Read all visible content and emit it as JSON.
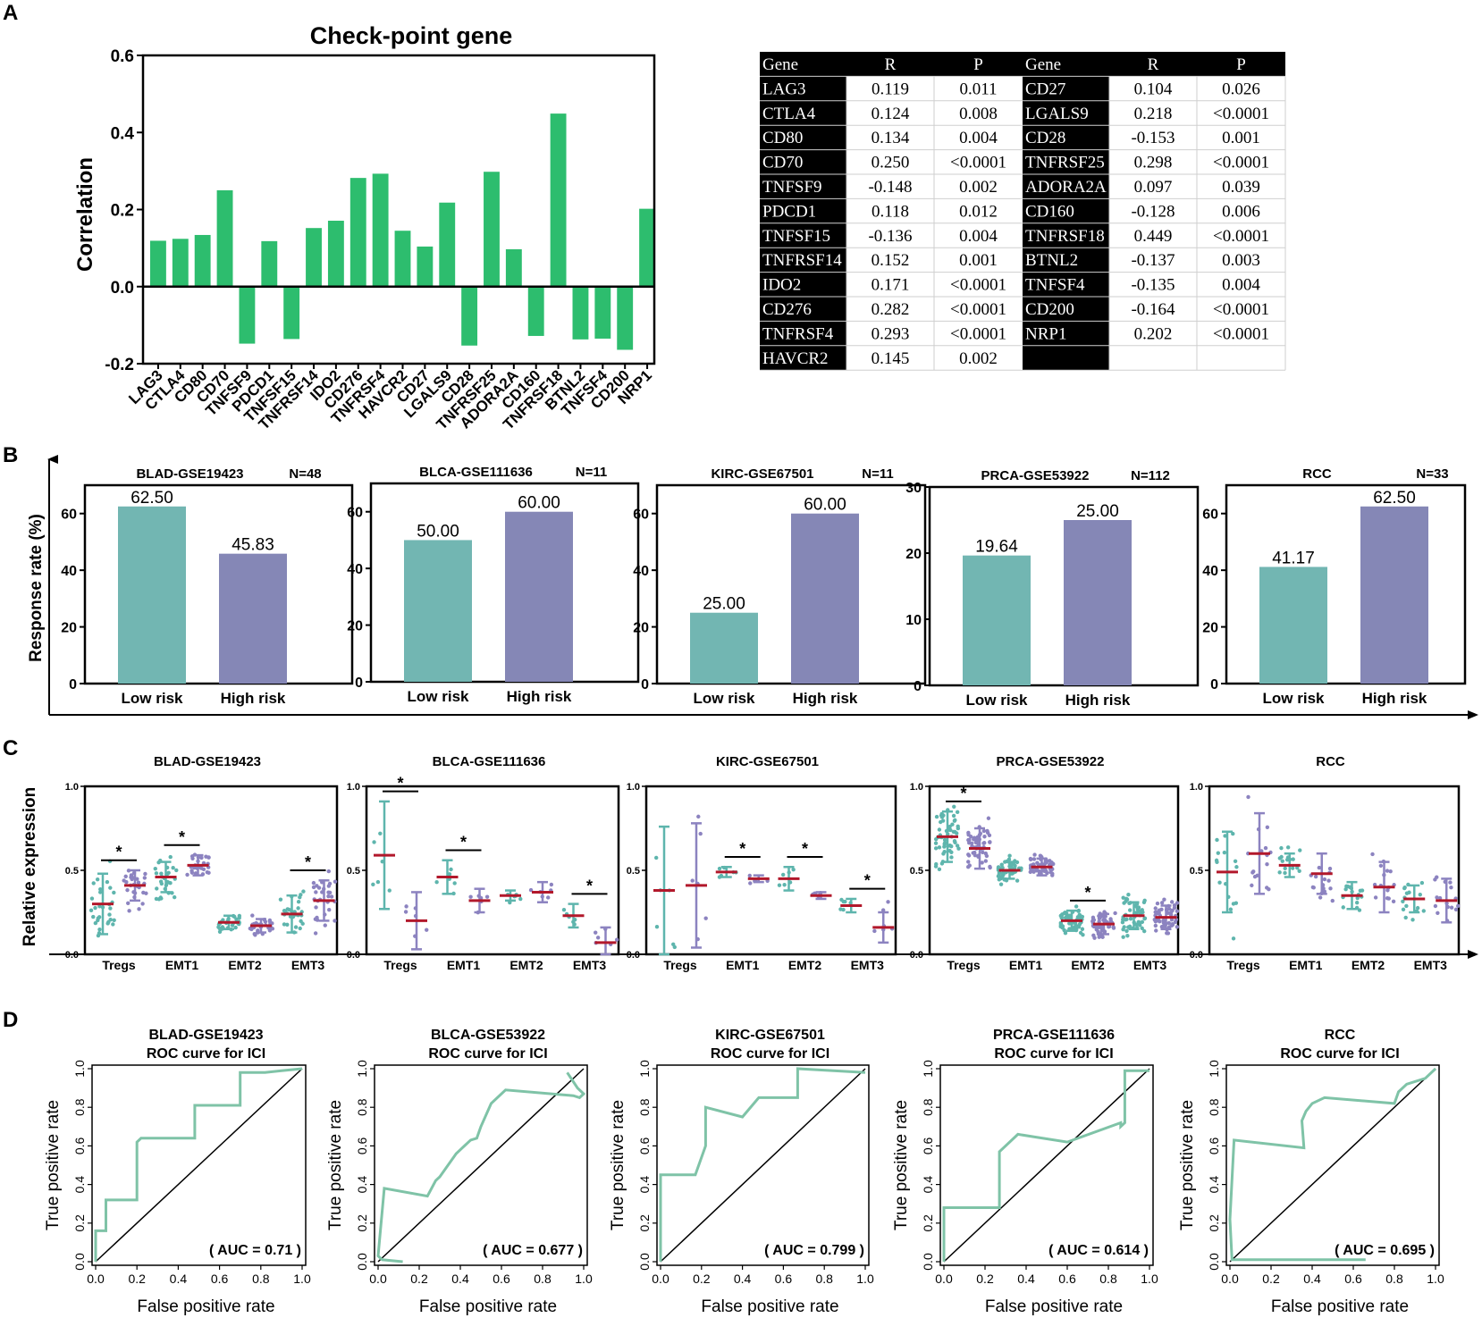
{
  "colors": {
    "green": "#2dbd6e",
    "low": "#72b6b2",
    "high": "#8587b6",
    "teal_dot": "#5eb5ad",
    "purple_dot": "#8c83c0",
    "median": "#b2182b",
    "roc": "#7fc3a7"
  },
  "panel_letters": [
    "A",
    "B",
    "C",
    "D"
  ],
  "chart_data": [
    {
      "id": "A-bar",
      "type": "bar",
      "title": "Check-point gene",
      "xlabel": "",
      "ylabel": "Correlation",
      "ylim": [
        -0.2,
        0.6
      ],
      "yticks": [
        "-0.2",
        "0.0",
        "0.2",
        "0.4",
        "0.6"
      ],
      "categories": [
        "LAG3",
        "CTLA4",
        "CD80",
        "CD70",
        "TNFSF9",
        "PDCD1",
        "TNFSF15",
        "TNFRSF14",
        "IDO2",
        "CD276",
        "TNFRSF4",
        "HAVCR2",
        "CD27",
        "LGALS9",
        "CD28",
        "TNFRSF25",
        "ADORA2A",
        "CD160",
        "TNFRSF18",
        "BTNL2",
        "TNFSF4",
        "CD200",
        "NRP1"
      ],
      "values": [
        0.119,
        0.124,
        0.134,
        0.25,
        -0.148,
        0.118,
        -0.136,
        0.152,
        0.171,
        0.282,
        0.293,
        0.145,
        0.104,
        0.218,
        -0.153,
        0.298,
        0.097,
        -0.128,
        0.449,
        -0.137,
        -0.135,
        -0.164,
        0.202
      ]
    },
    {
      "id": "A-table",
      "type": "table",
      "columns": [
        "Gene",
        "R",
        "P",
        "Gene",
        "R",
        "P"
      ],
      "rows": [
        [
          "LAG3",
          "0.119",
          "0.011",
          "CD27",
          "0.104",
          "0.026"
        ],
        [
          "CTLA4",
          "0.124",
          "0.008",
          "LGALS9",
          "0.218",
          "<0.0001"
        ],
        [
          "CD80",
          "0.134",
          "0.004",
          "CD28",
          "-0.153",
          "0.001"
        ],
        [
          "CD70",
          "0.250",
          "<0.0001",
          "TNFRSF25",
          "0.298",
          "<0.0001"
        ],
        [
          "TNFSF9",
          "-0.148",
          "0.002",
          "ADORA2A",
          "0.097",
          "0.039"
        ],
        [
          "PDCD1",
          "0.118",
          "0.012",
          "CD160",
          "-0.128",
          "0.006"
        ],
        [
          "TNFSF15",
          "-0.136",
          "0.004",
          "TNFRSF18",
          "0.449",
          "<0.0001"
        ],
        [
          "TNFRSF14",
          "0.152",
          "0.001",
          "BTNL2",
          "-0.137",
          "0.003"
        ],
        [
          "IDO2",
          "0.171",
          "<0.0001",
          "TNFSF4",
          "-0.135",
          "0.004"
        ],
        [
          "CD276",
          "0.282",
          "<0.0001",
          "CD200",
          "-0.164",
          "<0.0001"
        ],
        [
          "TNFRSF4",
          "0.293",
          "<0.0001",
          "NRP1",
          "0.202",
          "<0.0001"
        ],
        [
          "HAVCR2",
          "0.145",
          "0.002",
          "",
          "",
          ""
        ]
      ]
    },
    {
      "id": "B-bars",
      "type": "bar",
      "ylabel": "Response rate (%)",
      "categories": [
        "Low risk",
        "High risk"
      ],
      "subplots": [
        {
          "title": "BLAD-GSE19423",
          "n": "N=48",
          "ymax": 70,
          "yticks": [
            "0",
            "20",
            "40",
            "60"
          ],
          "values": [
            62.5,
            45.83
          ],
          "labels": [
            "62.50",
            "45.83"
          ]
        },
        {
          "title": "BLCA-GSE111636",
          "n": "N=11",
          "ymax": 70,
          "yticks": [
            "0",
            "20",
            "40",
            "60"
          ],
          "values": [
            50.0,
            60.0
          ],
          "labels": [
            "50.00",
            "60.00"
          ]
        },
        {
          "title": "KIRC-GSE67501",
          "n": "N=11",
          "ymax": 70,
          "yticks": [
            "0",
            "20",
            "40",
            "60"
          ],
          "values": [
            25.0,
            60.0
          ],
          "labels": [
            "25.00",
            "60.00"
          ]
        },
        {
          "title": "PRCA-GSE53922",
          "n": "N=112",
          "ymax": 30,
          "yticks": [
            "0",
            "10",
            "20",
            "30"
          ],
          "values": [
            19.64,
            25.0
          ],
          "labels": [
            "19.64",
            "25.00"
          ]
        },
        {
          "title": "RCC",
          "n": "N=33",
          "ymax": 70,
          "yticks": [
            "0",
            "20",
            "40",
            "60"
          ],
          "values": [
            41.17,
            62.5
          ],
          "labels": [
            "41.17",
            "62.50"
          ]
        }
      ]
    },
    {
      "id": "C-scatter",
      "type": "scatter",
      "ylabel": "Relative expression",
      "categories": [
        "Tregs",
        "EMT1",
        "EMT2",
        "EMT3"
      ],
      "ylim": [
        0,
        1
      ],
      "yticks": [
        "0.0",
        "0.5",
        "1.0"
      ],
      "subplots": [
        {
          "title": "BLAD-GSE19423",
          "n": 30,
          "groups": [
            [
              0.3,
              0.18
            ],
            [
              0.41,
              0.09
            ],
            [
              0.46,
              0.09
            ],
            [
              0.53,
              0.06
            ],
            [
              0.19,
              0.04
            ],
            [
              0.17,
              0.04
            ],
            [
              0.24,
              0.11
            ],
            [
              0.32,
              0.12
            ]
          ],
          "sig": [
            0,
            1,
            3
          ],
          "sig_label": "*"
        },
        {
          "title": "BLCA-GSE111636",
          "n": 6,
          "groups": [
            [
              0.59,
              0.32
            ],
            [
              0.2,
              0.17
            ],
            [
              0.46,
              0.1
            ],
            [
              0.32,
              0.07
            ],
            [
              0.35,
              0.03
            ],
            [
              0.37,
              0.06
            ],
            [
              0.23,
              0.07
            ],
            [
              0.07,
              0.09
            ]
          ],
          "sig": [
            0,
            1,
            3
          ],
          "sig_label": "*"
        },
        {
          "title": "KIRC-GSE67501",
          "n": 6,
          "groups": [
            [
              0.38,
              0.38
            ],
            [
              0.41,
              0.37
            ],
            [
              0.49,
              0.03
            ],
            [
              0.45,
              0.02
            ],
            [
              0.45,
              0.07
            ],
            [
              0.35,
              0.02
            ],
            [
              0.29,
              0.04
            ],
            [
              0.16,
              0.09
            ]
          ],
          "sig": [
            1,
            2,
            3
          ],
          "sig_label": "*"
        },
        {
          "title": "PRCA-GSE53922",
          "n": 55,
          "groups": [
            [
              0.7,
              0.15
            ],
            [
              0.63,
              0.12
            ],
            [
              0.5,
              0.05
            ],
            [
              0.52,
              0.05
            ],
            [
              0.2,
              0.06
            ],
            [
              0.18,
              0.06
            ],
            [
              0.23,
              0.08
            ],
            [
              0.22,
              0.07
            ]
          ],
          "sig": [
            0,
            2
          ],
          "sig_label": "*"
        },
        {
          "title": "RCC",
          "n": 16,
          "groups": [
            [
              0.49,
              0.24
            ],
            [
              0.6,
              0.24
            ],
            [
              0.53,
              0.07
            ],
            [
              0.48,
              0.12
            ],
            [
              0.35,
              0.08
            ],
            [
              0.4,
              0.15
            ],
            [
              0.33,
              0.08
            ],
            [
              0.32,
              0.13
            ]
          ],
          "sig": [],
          "sig_label": "*"
        }
      ]
    },
    {
      "id": "D-roc",
      "type": "line",
      "xlabel": "False positive rate",
      "ylabel": "True positive rate",
      "xticks": [
        "0.0",
        "0.2",
        "0.4",
        "0.6",
        "0.8",
        "1.0"
      ],
      "yticks": [
        "0.0",
        "0.2",
        "0.4",
        "0.6",
        "0.8",
        "1.0"
      ],
      "subplots": [
        {
          "title1": "BLAD-GSE19423",
          "title2": "ROC curve for ICI",
          "auc": "( AUC =  0.71 )",
          "x": [
            0,
            0,
            0.05,
            0.05,
            0.2,
            0.2,
            0.22,
            0.48,
            0.48,
            0.7,
            0.7,
            0.82,
            0.9,
            1.0
          ],
          "y": [
            0,
            0.16,
            0.16,
            0.32,
            0.32,
            0.62,
            0.64,
            0.64,
            0.81,
            0.81,
            0.98,
            0.98,
            0.99,
            1.0
          ]
        },
        {
          "title1": "BLCA-GSE53922",
          "title2": "ROC curve for ICI",
          "auc": "( AUC =  0.677 )",
          "x": [
            0.12,
            0.02,
            0,
            0.03,
            0.24,
            0.28,
            0.3,
            0.32,
            0.34,
            0.36,
            0.38,
            0.4,
            0.42,
            0.45,
            0.48,
            0.5,
            0.55,
            0.62,
            0.95,
            0.98,
            1.0,
            0.97,
            0.92
          ],
          "y": [
            0,
            0.01,
            0.03,
            0.38,
            0.34,
            0.42,
            0.44,
            0.47,
            0.5,
            0.53,
            0.56,
            0.58,
            0.6,
            0.63,
            0.64,
            0.7,
            0.82,
            0.89,
            0.86,
            0.85,
            0.87,
            0.9,
            0.98
          ]
        },
        {
          "title1": "KIRC-GSE67501",
          "title2": "ROC curve for ICI",
          "auc": "( AUC =  0.799 )",
          "x": [
            0,
            0,
            0.17,
            0.22,
            0.22,
            0.4,
            0.48,
            0.67,
            0.67,
            1.0
          ],
          "y": [
            0,
            0.45,
            0.45,
            0.6,
            0.8,
            0.75,
            0.85,
            0.85,
            1.0,
            0.98
          ]
        },
        {
          "title1": "PRCA-GSE111636",
          "title2": "ROC curve for ICI",
          "auc": "( AUC =  0.614 )",
          "x": [
            0,
            0,
            0.27,
            0.27,
            0.36,
            0.6,
            0.86,
            0.86,
            0.88,
            0.88,
            1.0
          ],
          "y": [
            0,
            0.28,
            0.28,
            0.57,
            0.66,
            0.62,
            0.72,
            0.7,
            0.72,
            0.99,
            0.99
          ]
        },
        {
          "title1": "RCC",
          "title2": "ROC curve for ICI",
          "auc": "( AUC =  0.695 )",
          "x": [
            0.66,
            0.01,
            0.0,
            0.02,
            0.36,
            0.35,
            0.37,
            0.4,
            0.46,
            0.8,
            0.82,
            0.86,
            0.95,
            1.0
          ],
          "y": [
            0.01,
            0.01,
            0.22,
            0.63,
            0.59,
            0.73,
            0.78,
            0.82,
            0.85,
            0.82,
            0.88,
            0.92,
            0.95,
            1.0
          ]
        }
      ]
    }
  ]
}
